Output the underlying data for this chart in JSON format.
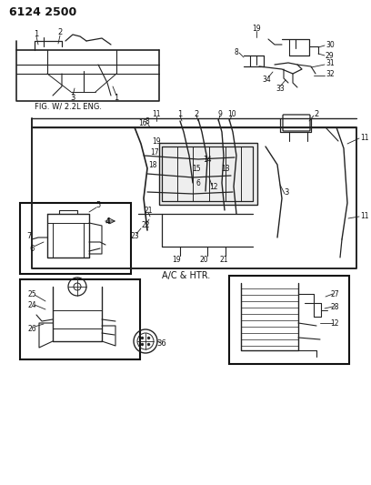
{
  "title": "6124 2500",
  "bg_color": "#ffffff",
  "fig_width": 4.08,
  "fig_height": 5.33,
  "dpi": 100,
  "label_top": "FIG. W/ 2.2L ENG.",
  "label_center": "A/C & HTR.",
  "line_color": "#222222",
  "box_line_color": "#111111",
  "text_color": "#111111"
}
